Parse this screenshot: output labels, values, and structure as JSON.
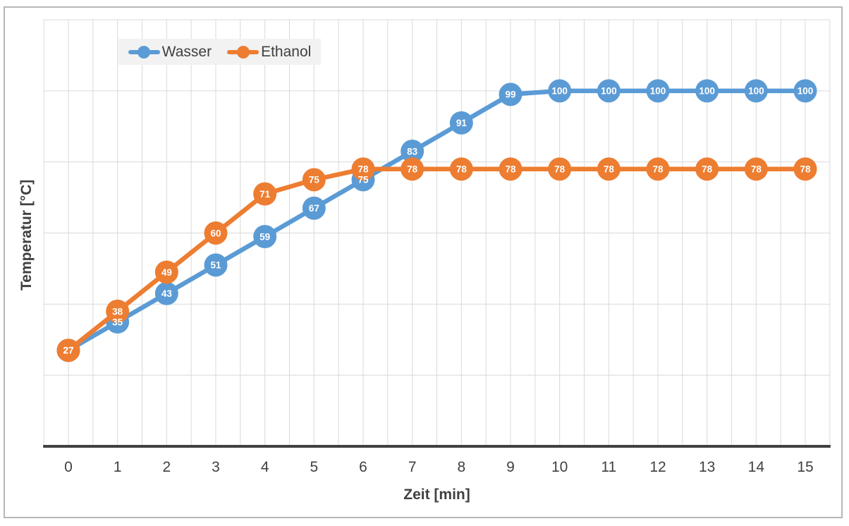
{
  "chart_data": {
    "type": "line",
    "x": [
      0,
      1,
      2,
      3,
      4,
      5,
      6,
      7,
      8,
      9,
      10,
      11,
      12,
      13,
      14,
      15
    ],
    "series": [
      {
        "name": "Wasser",
        "color": "#5B9BD5",
        "values": [
          27,
          35,
          43,
          51,
          59,
          67,
          75,
          83,
          91,
          99,
          100,
          100,
          100,
          100,
          100,
          100
        ]
      },
      {
        "name": "Ethanol",
        "color": "#ED7D31",
        "values": [
          27,
          38,
          49,
          60,
          71,
          75,
          78,
          78,
          78,
          78,
          78,
          78,
          78,
          78,
          78,
          78
        ]
      }
    ],
    "xlabel": "Zeit [min]",
    "ylabel": "Temperatur [°C]",
    "xlim": [
      -0.5,
      15.5
    ],
    "ylim": [
      0,
      120
    ],
    "y_major_step": 20,
    "x_minor_step": 0.5,
    "grid": true,
    "y_tick_labels_visible": false,
    "x_tick_labels": [
      0,
      1,
      2,
      3,
      4,
      5,
      6,
      7,
      8,
      9,
      10,
      11,
      12,
      13,
      14,
      15
    ],
    "data_labels": "values shown in white inside circular markers",
    "marker": "circle",
    "legend_position": "inside-top-left"
  },
  "legend": {
    "items": [
      "Wasser",
      "Ethanol"
    ]
  },
  "styles": {
    "series_blue": "#5B9BD5",
    "series_orange": "#ED7D31",
    "gridline_color": "#D9D9D9",
    "axis_line_color": "#404040",
    "text_color": "#404040",
    "data_label_color": "#FFFFFF",
    "legend_bg": "#F2F2F2",
    "frame_border": "#B7B7B7",
    "background": "#FFFFFF"
  }
}
